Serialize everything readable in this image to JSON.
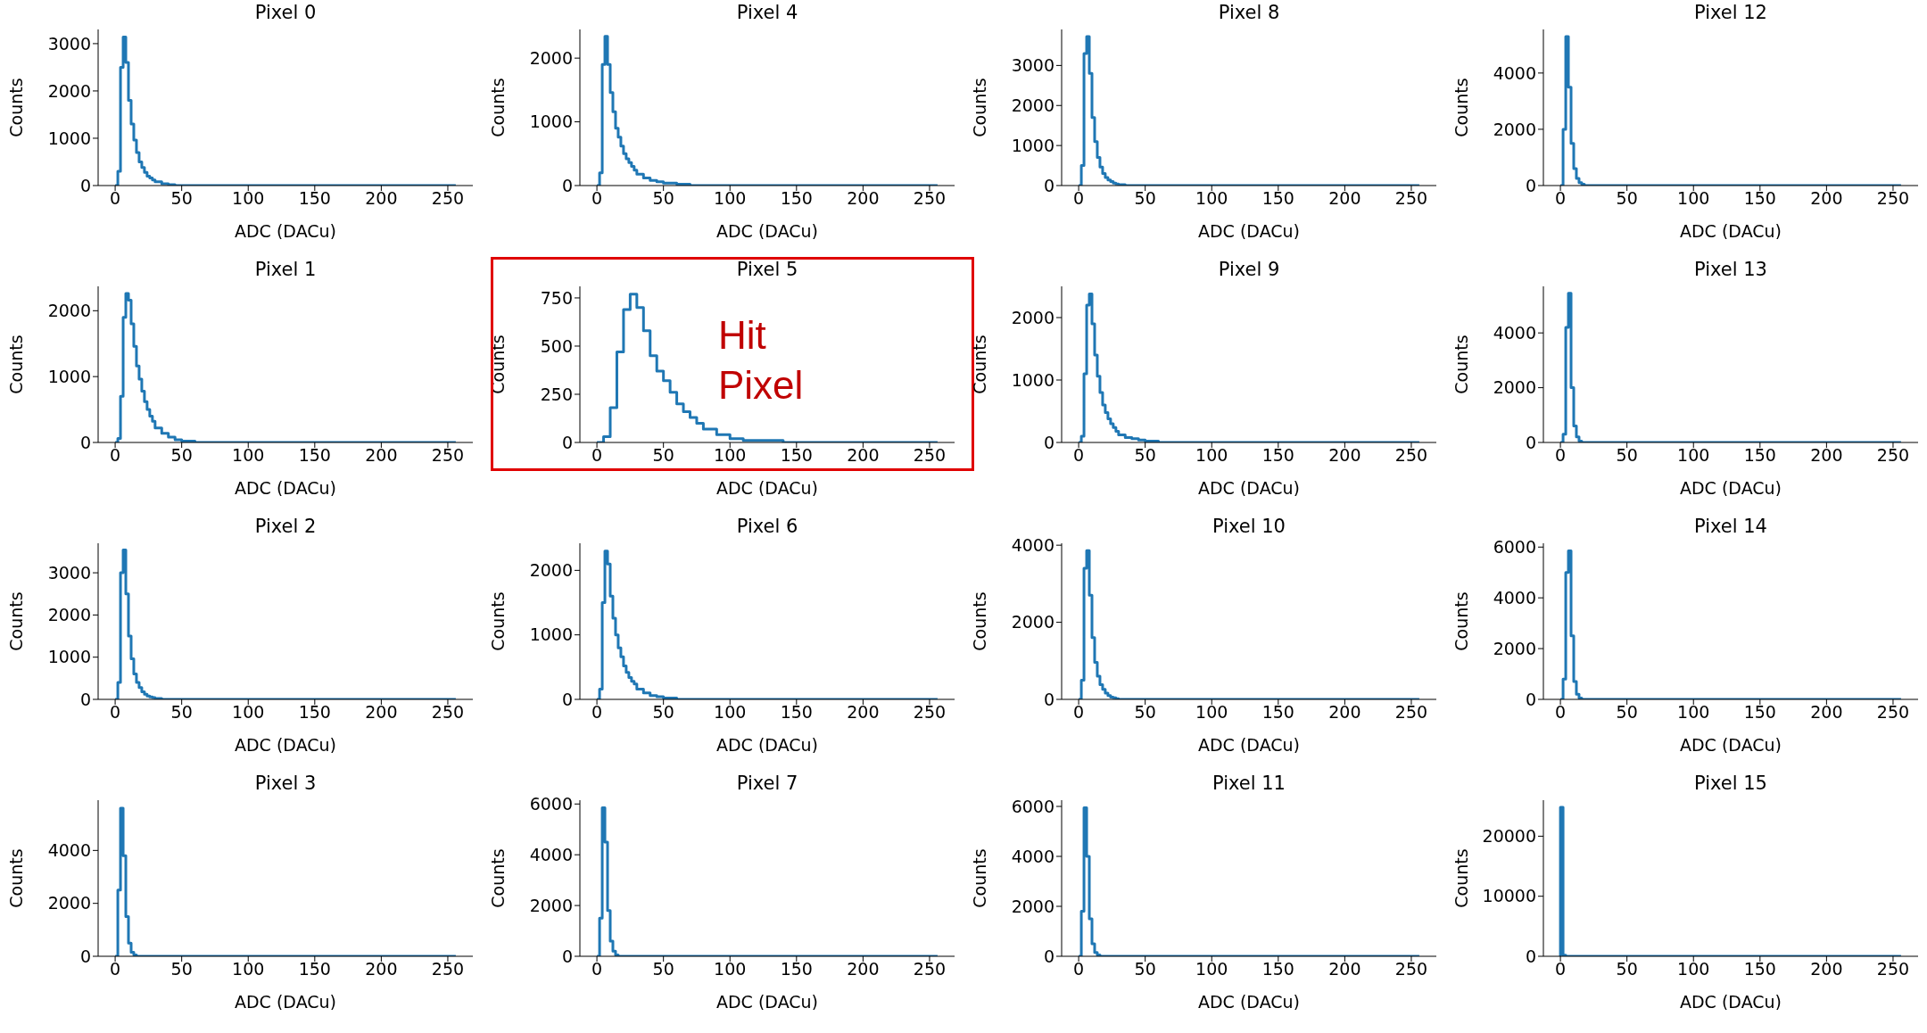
{
  "chart_data": [
    {
      "type": "histogram",
      "title": "Pixel 0",
      "xlabel": "ADC (DACu)",
      "ylabel": "Counts",
      "color": "#1f77b4",
      "xlim": [
        -12.8,
        268.8
      ],
      "ylim": [
        0,
        3300
      ],
      "xticks": [
        0,
        50,
        100,
        150,
        200,
        250
      ],
      "yticks": [
        0,
        1000,
        2000,
        3000
      ],
      "bins": [
        0,
        2,
        4,
        6,
        8,
        10,
        12,
        14,
        16,
        18,
        20,
        22,
        24,
        26,
        28,
        30,
        35,
        40,
        45,
        50,
        60,
        70,
        80,
        100,
        256
      ],
      "values": [
        0,
        300,
        2500,
        3140,
        2600,
        1800,
        1300,
        960,
        700,
        500,
        380,
        280,
        200,
        160,
        120,
        80,
        40,
        20,
        0,
        0,
        0,
        0,
        0,
        0
      ]
    },
    {
      "type": "histogram",
      "title": "Pixel 4",
      "xlabel": "ADC (DACu)",
      "ylabel": "Counts",
      "color": "#1f77b4",
      "xlim": [
        -12.8,
        268.8
      ],
      "ylim": [
        0,
        2450
      ],
      "xticks": [
        0,
        50,
        100,
        150,
        200,
        250
      ],
      "yticks": [
        0,
        1000,
        2000
      ],
      "bins": [
        0,
        2,
        4,
        6,
        8,
        10,
        12,
        14,
        16,
        18,
        20,
        22,
        24,
        26,
        28,
        30,
        35,
        40,
        45,
        50,
        60,
        70,
        80,
        100,
        256
      ],
      "values": [
        0,
        200,
        1900,
        2340,
        1900,
        1460,
        1160,
        900,
        760,
        620,
        500,
        420,
        360,
        300,
        240,
        180,
        120,
        80,
        60,
        40,
        20,
        0,
        0,
        0
      ]
    },
    {
      "type": "histogram",
      "title": "Pixel 8",
      "xlabel": "ADC (DACu)",
      "ylabel": "Counts",
      "color": "#1f77b4",
      "xlim": [
        -12.8,
        268.8
      ],
      "ylim": [
        0,
        3900
      ],
      "xticks": [
        0,
        50,
        100,
        150,
        200,
        250
      ],
      "yticks": [
        0,
        1000,
        2000,
        3000
      ],
      "bins": [
        0,
        2,
        4,
        6,
        8,
        10,
        12,
        14,
        16,
        18,
        20,
        22,
        24,
        26,
        28,
        30,
        35,
        40,
        45,
        50,
        60,
        70,
        80,
        100,
        256
      ],
      "values": [
        0,
        500,
        3300,
        3720,
        2800,
        1700,
        1100,
        700,
        460,
        300,
        200,
        140,
        100,
        60,
        40,
        20,
        0,
        0,
        0,
        0,
        0,
        0,
        0,
        0
      ]
    },
    {
      "type": "histogram",
      "title": "Pixel 12",
      "xlabel": "ADC (DACu)",
      "ylabel": "Counts",
      "color": "#1f77b4",
      "xlim": [
        -12.8,
        268.8
      ],
      "ylim": [
        0,
        5550
      ],
      "xticks": [
        0,
        50,
        100,
        150,
        200,
        250
      ],
      "yticks": [
        0,
        2000,
        4000
      ],
      "bins": [
        0,
        2,
        4,
        6,
        8,
        10,
        12,
        14,
        16,
        18,
        20,
        22,
        24,
        26,
        28,
        30,
        35,
        40,
        45,
        50,
        60,
        70,
        80,
        100,
        256
      ],
      "values": [
        0,
        2000,
        5300,
        3500,
        1500,
        600,
        250,
        100,
        50,
        0,
        0,
        0,
        0,
        0,
        0,
        0,
        0,
        0,
        0,
        0,
        0,
        0,
        0,
        0
      ]
    },
    {
      "type": "histogram",
      "title": "Pixel 1",
      "xlabel": "ADC (DACu)",
      "ylabel": "Counts",
      "color": "#1f77b4",
      "xlim": [
        -12.8,
        268.8
      ],
      "ylim": [
        0,
        2370
      ],
      "xticks": [
        0,
        50,
        100,
        150,
        200,
        250
      ],
      "yticks": [
        0,
        1000,
        2000
      ],
      "bins": [
        0,
        2,
        4,
        6,
        8,
        10,
        12,
        14,
        16,
        18,
        20,
        22,
        24,
        26,
        28,
        30,
        35,
        40,
        45,
        50,
        60,
        70,
        80,
        100,
        256
      ],
      "values": [
        0,
        60,
        700,
        1900,
        2260,
        2160,
        1800,
        1460,
        1160,
        960,
        780,
        620,
        500,
        400,
        320,
        220,
        140,
        80,
        40,
        20,
        0,
        0,
        0,
        0
      ]
    },
    {
      "type": "histogram",
      "title": "Pixel 5",
      "xlabel": "ADC (DACu)",
      "ylabel": "Counts",
      "color": "#1f77b4",
      "xlim": [
        -12.8,
        268.8
      ],
      "ylim": [
        0,
        810
      ],
      "xticks": [
        0,
        50,
        100,
        150,
        200,
        250
      ],
      "yticks": [
        0,
        250,
        500,
        750
      ],
      "bins": [
        0,
        5,
        10,
        15,
        20,
        25,
        30,
        35,
        40,
        45,
        50,
        55,
        60,
        65,
        70,
        75,
        80,
        90,
        100,
        110,
        120,
        140,
        160,
        200,
        256
      ],
      "values": [
        0,
        30,
        180,
        470,
        690,
        770,
        700,
        580,
        450,
        370,
        320,
        260,
        200,
        160,
        130,
        100,
        70,
        40,
        20,
        10,
        10,
        0,
        0,
        0
      ],
      "annotations": [
        "Hit\nPixel"
      ]
    },
    {
      "type": "histogram",
      "title": "Pixel 9",
      "xlabel": "ADC (DACu)",
      "ylabel": "Counts",
      "color": "#1f77b4",
      "xlim": [
        -12.8,
        268.8
      ],
      "ylim": [
        0,
        2500
      ],
      "xticks": [
        0,
        50,
        100,
        150,
        200,
        250
      ],
      "yticks": [
        0,
        1000,
        2000
      ],
      "bins": [
        0,
        2,
        4,
        6,
        8,
        10,
        12,
        14,
        16,
        18,
        20,
        22,
        24,
        26,
        28,
        30,
        35,
        40,
        45,
        50,
        60,
        70,
        80,
        100,
        256
      ],
      "values": [
        0,
        100,
        1100,
        2200,
        2380,
        1900,
        1400,
        1060,
        800,
        600,
        480,
        380,
        300,
        240,
        180,
        120,
        80,
        60,
        40,
        20,
        0,
        0,
        0,
        0
      ]
    },
    {
      "type": "histogram",
      "title": "Pixel 13",
      "xlabel": "ADC (DACu)",
      "ylabel": "Counts",
      "color": "#1f77b4",
      "xlim": [
        -12.8,
        268.8
      ],
      "ylim": [
        0,
        5700
      ],
      "xticks": [
        0,
        50,
        100,
        150,
        200,
        250
      ],
      "yticks": [
        0,
        2000,
        4000
      ],
      "bins": [
        0,
        2,
        4,
        6,
        8,
        10,
        12,
        14,
        16,
        18,
        20,
        22,
        24,
        26,
        28,
        30,
        35,
        40,
        45,
        50,
        60,
        70,
        80,
        100,
        256
      ],
      "values": [
        0,
        300,
        4200,
        5450,
        2000,
        600,
        200,
        50,
        0,
        0,
        0,
        0,
        0,
        0,
        0,
        0,
        0,
        0,
        0,
        0,
        0,
        0,
        0,
        0
      ]
    },
    {
      "type": "histogram",
      "title": "Pixel 2",
      "xlabel": "ADC (DACu)",
      "ylabel": "Counts",
      "color": "#1f77b4",
      "xlim": [
        -12.8,
        268.8
      ],
      "ylim": [
        0,
        3700
      ],
      "xticks": [
        0,
        50,
        100,
        150,
        200,
        250
      ],
      "yticks": [
        0,
        1000,
        2000,
        3000
      ],
      "bins": [
        0,
        2,
        4,
        6,
        8,
        10,
        12,
        14,
        16,
        18,
        20,
        22,
        24,
        26,
        28,
        30,
        35,
        40,
        45,
        50,
        60,
        70,
        80,
        100,
        256
      ],
      "values": [
        0,
        400,
        3000,
        3540,
        2500,
        1500,
        960,
        600,
        400,
        280,
        180,
        120,
        80,
        60,
        40,
        20,
        0,
        0,
        0,
        0,
        0,
        0,
        0,
        0
      ]
    },
    {
      "type": "histogram",
      "title": "Pixel 6",
      "xlabel": "ADC (DACu)",
      "ylabel": "Counts",
      "color": "#1f77b4",
      "xlim": [
        -12.8,
        268.8
      ],
      "ylim": [
        0,
        2420
      ],
      "xticks": [
        0,
        50,
        100,
        150,
        200,
        250
      ],
      "yticks": [
        0,
        1000,
        2000
      ],
      "bins": [
        0,
        2,
        4,
        6,
        8,
        10,
        12,
        14,
        16,
        18,
        20,
        22,
        24,
        26,
        28,
        30,
        35,
        40,
        45,
        50,
        60,
        70,
        80,
        100,
        256
      ],
      "values": [
        0,
        160,
        1500,
        2300,
        2100,
        1600,
        1260,
        1000,
        800,
        660,
        520,
        420,
        340,
        280,
        240,
        160,
        100,
        60,
        40,
        20,
        0,
        0,
        0,
        0
      ]
    },
    {
      "type": "histogram",
      "title": "Pixel 10",
      "xlabel": "ADC (DACu)",
      "ylabel": "Counts",
      "color": "#1f77b4",
      "xlim": [
        -12.8,
        268.8
      ],
      "ylim": [
        0,
        4050
      ],
      "xticks": [
        0,
        50,
        100,
        150,
        200,
        250
      ],
      "yticks": [
        0,
        2000,
        4000
      ],
      "bins": [
        0,
        2,
        4,
        6,
        8,
        10,
        12,
        14,
        16,
        18,
        20,
        22,
        24,
        26,
        28,
        30,
        35,
        40,
        45,
        50,
        60,
        70,
        80,
        100,
        256
      ],
      "values": [
        0,
        500,
        3400,
        3860,
        2700,
        1600,
        960,
        600,
        380,
        260,
        160,
        100,
        60,
        40,
        20,
        0,
        0,
        0,
        0,
        0,
        0,
        0,
        0,
        0
      ]
    },
    {
      "type": "histogram",
      "title": "Pixel 14",
      "xlabel": "ADC (DACu)",
      "ylabel": "Counts",
      "color": "#1f77b4",
      "xlim": [
        -12.8,
        268.8
      ],
      "ylim": [
        0,
        6150
      ],
      "xticks": [
        0,
        50,
        100,
        150,
        200,
        250
      ],
      "yticks": [
        0,
        2000,
        4000,
        6000
      ],
      "bins": [
        0,
        2,
        4,
        6,
        8,
        10,
        12,
        14,
        16,
        18,
        20,
        22,
        24,
        26,
        28,
        30,
        35,
        40,
        45,
        50,
        60,
        70,
        80,
        100,
        256
      ],
      "values": [
        0,
        800,
        5000,
        5850,
        2500,
        700,
        200,
        50,
        0,
        0,
        0,
        0,
        0,
        0,
        0,
        0,
        0,
        0,
        0,
        0,
        0,
        0,
        0,
        0
      ]
    },
    {
      "type": "histogram",
      "title": "Pixel 3",
      "xlabel": "ADC (DACu)",
      "ylabel": "Counts",
      "color": "#1f77b4",
      "xlim": [
        -12.8,
        268.8
      ],
      "ylim": [
        0,
        5900
      ],
      "xticks": [
        0,
        50,
        100,
        150,
        200,
        250
      ],
      "yticks": [
        0,
        2000,
        4000
      ],
      "bins": [
        0,
        2,
        4,
        6,
        8,
        10,
        12,
        14,
        16,
        18,
        20,
        22,
        24,
        26,
        28,
        30,
        35,
        40,
        45,
        50,
        60,
        70,
        80,
        100,
        256
      ],
      "values": [
        0,
        2500,
        5600,
        3800,
        1500,
        500,
        150,
        50,
        0,
        0,
        0,
        0,
        0,
        0,
        0,
        0,
        0,
        0,
        0,
        0,
        0,
        0,
        0,
        0
      ]
    },
    {
      "type": "histogram",
      "title": "Pixel 7",
      "xlabel": "ADC (DACu)",
      "ylabel": "Counts",
      "color": "#1f77b4",
      "xlim": [
        -12.8,
        268.8
      ],
      "ylim": [
        0,
        6150
      ],
      "xticks": [
        0,
        50,
        100,
        150,
        200,
        250
      ],
      "yticks": [
        0,
        2000,
        4000,
        6000
      ],
      "bins": [
        0,
        2,
        4,
        6,
        8,
        10,
        12,
        14,
        16,
        18,
        20,
        22,
        24,
        26,
        28,
        30,
        35,
        40,
        45,
        50,
        60,
        70,
        80,
        100,
        256
      ],
      "values": [
        0,
        1500,
        5850,
        4500,
        1800,
        600,
        200,
        50,
        0,
        0,
        0,
        0,
        0,
        0,
        0,
        0,
        0,
        0,
        0,
        0,
        0,
        0,
        0,
        0
      ]
    },
    {
      "type": "histogram",
      "title": "Pixel 11",
      "xlabel": "ADC (DACu)",
      "ylabel": "Counts",
      "color": "#1f77b4",
      "xlim": [
        -12.8,
        268.8
      ],
      "ylim": [
        0,
        6250
      ],
      "xticks": [
        0,
        50,
        100,
        150,
        200,
        250
      ],
      "yticks": [
        0,
        2000,
        4000,
        6000
      ],
      "bins": [
        0,
        2,
        4,
        6,
        8,
        10,
        12,
        14,
        16,
        18,
        20,
        22,
        24,
        26,
        28,
        30,
        35,
        40,
        45,
        50,
        60,
        70,
        80,
        100,
        256
      ],
      "values": [
        0,
        1800,
        5950,
        4000,
        1500,
        500,
        150,
        50,
        0,
        0,
        0,
        0,
        0,
        0,
        0,
        0,
        0,
        0,
        0,
        0,
        0,
        0,
        0,
        0
      ]
    },
    {
      "type": "histogram",
      "title": "Pixel 15",
      "xlabel": "ADC (DACu)",
      "ylabel": "Counts",
      "color": "#1f77b4",
      "xlim": [
        -12.8,
        268.8
      ],
      "ylim": [
        0,
        26000
      ],
      "xticks": [
        0,
        50,
        100,
        150,
        200,
        250
      ],
      "yticks": [
        0,
        10000,
        20000
      ],
      "bins": [
        0,
        2,
        4,
        6,
        8,
        10,
        12,
        14,
        16,
        18,
        20,
        22,
        24,
        26,
        28,
        30,
        35,
        40,
        45,
        50,
        60,
        70,
        80,
        100,
        256
      ],
      "values": [
        24800,
        200,
        0,
        0,
        0,
        0,
        0,
        0,
        0,
        0,
        0,
        0,
        0,
        0,
        0,
        0,
        0,
        0,
        0,
        0,
        0,
        0,
        0,
        0
      ]
    }
  ]
}
